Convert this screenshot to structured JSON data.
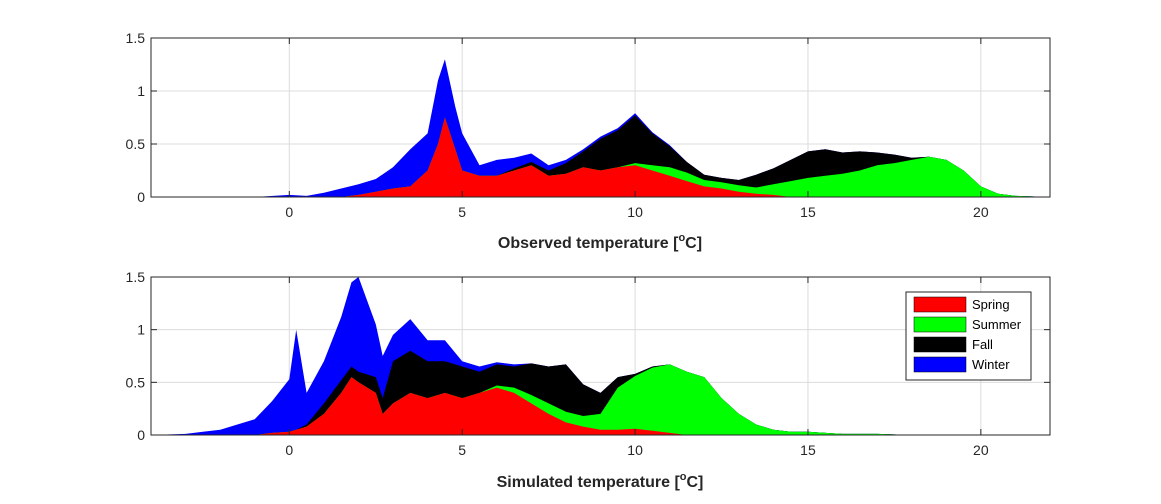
{
  "chart_data": [
    {
      "type": "area",
      "stacking": "stacked",
      "title": "",
      "xlabel": "Observed temperature [",
      "xlabel_sup": "o",
      "xlabel_end": "C]",
      "ylabel": "",
      "xlim": [
        -4,
        22
      ],
      "ylim": [
        0,
        1.5
      ],
      "xticks": [
        0,
        5,
        10,
        15,
        20
      ],
      "yticks": [
        0,
        0.5,
        1,
        1.5
      ],
      "ytick_labels": [
        "0",
        "0.5",
        "1",
        "1.5"
      ],
      "grid": true,
      "x": [
        -4,
        -3,
        -2,
        -1,
        0,
        0.5,
        1,
        1.5,
        2,
        2.5,
        3,
        3.5,
        4,
        4.3,
        4.5,
        4.8,
        5,
        5.5,
        6,
        6.5,
        7,
        7.5,
        8,
        8.5,
        9,
        9.5,
        10,
        10.5,
        11,
        11.5,
        12,
        12.5,
        13,
        13.5,
        14,
        14.5,
        15,
        15.5,
        16,
        16.5,
        17,
        17.5,
        18,
        18.5,
        19,
        19.5,
        20,
        20.5,
        21,
        22
      ],
      "series": [
        {
          "name": "Spring",
          "color": "#ff0000",
          "values": [
            0,
            0,
            0,
            0,
            0,
            0,
            0,
            0,
            0.02,
            0.05,
            0.08,
            0.1,
            0.25,
            0.5,
            0.75,
            0.45,
            0.25,
            0.2,
            0.2,
            0.25,
            0.3,
            0.2,
            0.22,
            0.28,
            0.25,
            0.28,
            0.3,
            0.25,
            0.2,
            0.15,
            0.1,
            0.08,
            0.05,
            0.03,
            0.02,
            0,
            0,
            0,
            0,
            0,
            0,
            0,
            0,
            0,
            0,
            0,
            0,
            0,
            0,
            0
          ]
        },
        {
          "name": "Summer",
          "color": "#00ff00",
          "values": [
            0,
            0,
            0,
            0,
            0,
            0,
            0,
            0,
            0,
            0,
            0,
            0,
            0,
            0,
            0,
            0,
            0,
            0,
            0,
            0,
            0,
            0,
            0,
            0,
            0,
            0,
            0.02,
            0.05,
            0.08,
            0.08,
            0.06,
            0.06,
            0.06,
            0.06,
            0.1,
            0.15,
            0.18,
            0.2,
            0.22,
            0.25,
            0.3,
            0.32,
            0.35,
            0.38,
            0.35,
            0.25,
            0.1,
            0.03,
            0.01,
            0
          ]
        },
        {
          "name": "Fall",
          "color": "#000000",
          "values": [
            0,
            0,
            0,
            0,
            0,
            0,
            0,
            0,
            0,
            0,
            0,
            0,
            0,
            0,
            0,
            0,
            0,
            0,
            0,
            0.02,
            0.03,
            0.05,
            0.1,
            0.15,
            0.3,
            0.35,
            0.45,
            0.3,
            0.2,
            0.1,
            0.05,
            0.04,
            0.05,
            0.12,
            0.15,
            0.2,
            0.25,
            0.25,
            0.2,
            0.18,
            0.12,
            0.08,
            0.02,
            0,
            0,
            0,
            0,
            0,
            0,
            0
          ]
        },
        {
          "name": "Winter",
          "color": "#0000ff",
          "values": [
            0,
            0,
            0,
            0,
            0.02,
            0.01,
            0.04,
            0.08,
            0.1,
            0.12,
            0.2,
            0.35,
            0.35,
            0.6,
            0.55,
            0.4,
            0.35,
            0.1,
            0.15,
            0.1,
            0.08,
            0.05,
            0.03,
            0.02,
            0.02,
            0.02,
            0.02,
            0.01,
            0.01,
            0,
            0,
            0,
            0,
            0,
            0,
            0,
            0,
            0,
            0,
            0,
            0,
            0,
            0,
            0,
            0,
            0,
            0,
            0,
            0,
            0
          ]
        }
      ]
    },
    {
      "type": "area",
      "stacking": "stacked",
      "title": "",
      "xlabel": "Simulated temperature [",
      "xlabel_sup": "o",
      "xlabel_end": "C]",
      "ylabel": "",
      "xlim": [
        -4,
        22
      ],
      "ylim": [
        0,
        1.5
      ],
      "xticks": [
        0,
        5,
        10,
        15,
        20
      ],
      "yticks": [
        0,
        0.5,
        1,
        1.5
      ],
      "ytick_labels": [
        "0",
        "0.5",
        "1",
        "1.5"
      ],
      "grid": true,
      "legend_position": "upper-right",
      "x": [
        -4,
        -3,
        -2.5,
        -2,
        -1.5,
        -1,
        -0.5,
        0,
        0.2,
        0.5,
        1,
        1.5,
        1.8,
        2,
        2.5,
        2.7,
        3,
        3.5,
        4,
        4.5,
        5,
        5.5,
        6,
        6.5,
        7,
        7.5,
        8,
        8.5,
        9,
        9.5,
        10,
        10.5,
        11,
        11.5,
        12,
        12.5,
        13,
        13.5,
        14,
        14.5,
        15,
        15.5,
        16,
        17,
        18,
        22
      ],
      "series": [
        {
          "name": "Spring",
          "color": "#ff0000",
          "values": [
            0,
            0,
            0,
            0,
            0,
            0,
            0.02,
            0.03,
            0.05,
            0.08,
            0.2,
            0.4,
            0.55,
            0.5,
            0.4,
            0.2,
            0.3,
            0.4,
            0.35,
            0.4,
            0.35,
            0.4,
            0.45,
            0.4,
            0.3,
            0.2,
            0.12,
            0.08,
            0.05,
            0.05,
            0.06,
            0.04,
            0.02,
            0,
            0,
            0,
            0,
            0,
            0,
            0,
            0,
            0,
            0,
            0,
            0,
            0
          ]
        },
        {
          "name": "Summer",
          "color": "#00ff00",
          "values": [
            0,
            0,
            0,
            0,
            0,
            0,
            0,
            0,
            0,
            0,
            0,
            0,
            0,
            0,
            0,
            0,
            0,
            0,
            0,
            0,
            0,
            0,
            0.02,
            0.05,
            0.08,
            0.1,
            0.1,
            0.1,
            0.15,
            0.4,
            0.5,
            0.6,
            0.65,
            0.6,
            0.55,
            0.35,
            0.2,
            0.1,
            0.05,
            0.03,
            0.03,
            0.02,
            0.01,
            0.01,
            0,
            0
          ]
        },
        {
          "name": "Fall",
          "color": "#000000",
          "values": [
            0,
            0,
            0,
            0,
            0,
            0,
            0,
            0,
            0,
            0.02,
            0.1,
            0.12,
            0.1,
            0.1,
            0.15,
            0.15,
            0.4,
            0.4,
            0.35,
            0.3,
            0.3,
            0.2,
            0.2,
            0.2,
            0.3,
            0.35,
            0.45,
            0.3,
            0.2,
            0.1,
            0.02,
            0.01,
            0,
            0,
            0,
            0,
            0,
            0,
            0,
            0,
            0,
            0,
            0,
            0,
            0,
            0
          ]
        },
        {
          "name": "Winter",
          "color": "#0000ff",
          "values": [
            0,
            0.01,
            0.03,
            0.05,
            0.1,
            0.15,
            0.3,
            0.5,
            0.95,
            0.3,
            0.4,
            0.6,
            0.8,
            0.9,
            0.5,
            0.4,
            0.25,
            0.3,
            0.2,
            0.2,
            0.05,
            0.05,
            0.02,
            0.02,
            0,
            0,
            0,
            0,
            0,
            0,
            0,
            0,
            0,
            0,
            0,
            0,
            0,
            0,
            0,
            0,
            0,
            0,
            0,
            0,
            0,
            0
          ]
        }
      ]
    }
  ]
}
